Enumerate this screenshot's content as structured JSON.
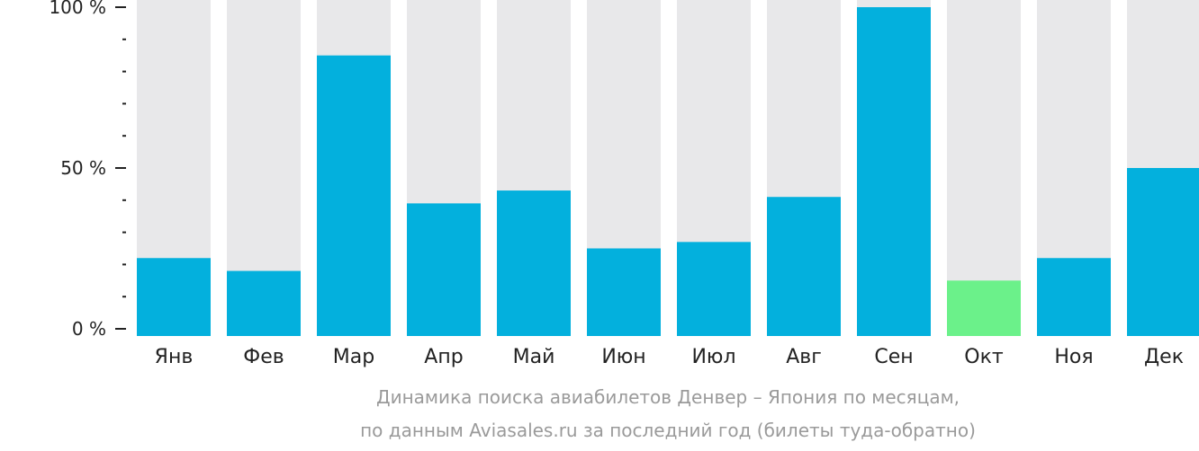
{
  "chart_data": {
    "type": "bar",
    "categories": [
      "Янв",
      "Фев",
      "Мар",
      "Апр",
      "Май",
      "Июн",
      "Июл",
      "Авг",
      "Сен",
      "Окт",
      "Ноя",
      "Дек"
    ],
    "values": [
      22,
      18,
      85,
      39,
      43,
      25,
      27,
      41,
      100,
      15,
      22,
      50
    ],
    "ylim": [
      0,
      100
    ],
    "y_ticks": [
      "0 %",
      "50 %",
      "100 %"
    ],
    "y_tick_values": [
      0,
      50,
      100
    ],
    "minor_tick_step": 10,
    "highlight_category": "Окт",
    "colors": {
      "bar": "#03b0dd",
      "highlight": "#6bf18a",
      "background_bar": "#e8e8ea",
      "axis": "#222222"
    },
    "caption": [
      "Динамика поиска авиабилетов Денвер – Япония по месяцам,",
      "по данным Aviasales.ru за последний год (билеты туда-обратно)"
    ]
  }
}
